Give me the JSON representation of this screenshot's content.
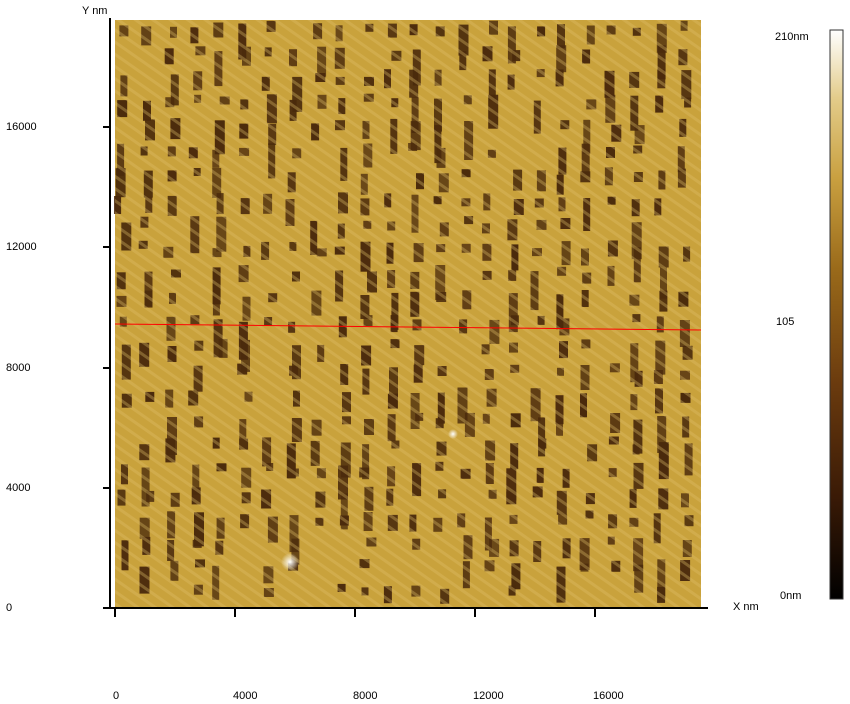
{
  "axes": {
    "x_label": "X nm",
    "y_label": "Y nm",
    "x_ticks": [
      "0",
      "4000",
      "8000",
      "12000",
      "16000"
    ],
    "y_ticks": [
      "0",
      "4000",
      "8000",
      "12000",
      "16000"
    ]
  },
  "colorbar": {
    "max_label": "210nm",
    "mid_label": "105",
    "min_label": "0nm",
    "gradient_colors": [
      "#000000",
      "#3a1a06",
      "#6b3b0e",
      "#9a6a1a",
      "#c9a040",
      "#e3cc8a",
      "#ffffff"
    ]
  },
  "image": {
    "surface_color": "#c9a23c",
    "pit_color": "#4a2a0c",
    "profile_line_color": "#ff0000"
  }
}
